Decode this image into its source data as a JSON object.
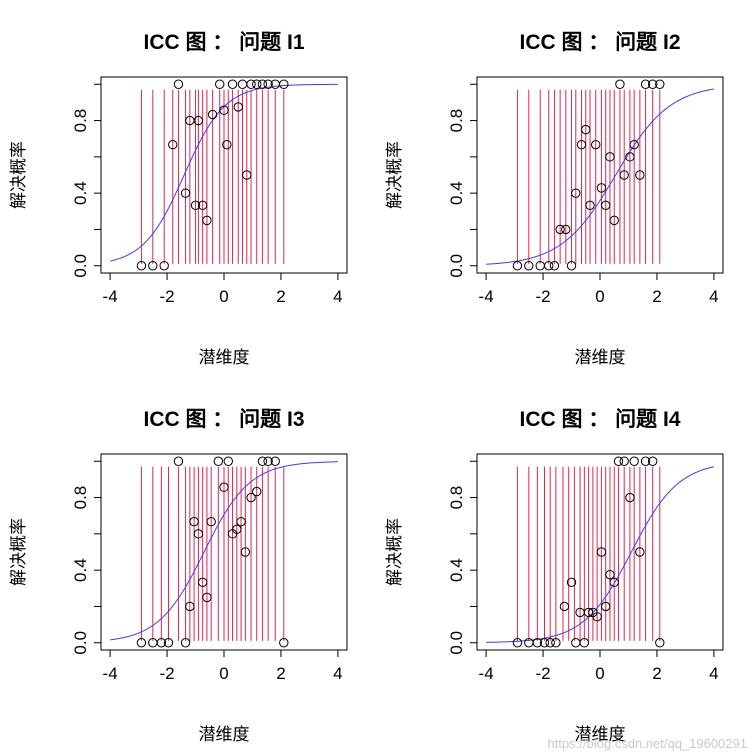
{
  "colors": {
    "curve": "#3b3bff",
    "intervals": "#e0264e",
    "points": "#000000",
    "frame": "#000000"
  },
  "watermark": "https://blog.csdn.net/qq_19600291",
  "chart_data": [
    {
      "type": "scatter",
      "title": "ICC 图 ： 问题  I1",
      "xlabel": "潜维度",
      "ylabel": "解决概率",
      "xlim": [
        -4,
        4
      ],
      "ylim": [
        0,
        1
      ],
      "xticks": [
        "-4",
        "-2",
        "0",
        "2",
        "4"
      ],
      "yticks": [
        "0.0",
        "0.4",
        "0.8"
      ],
      "curve": {
        "a": 1.4,
        "b": -1.4
      },
      "points": {
        "x": [
          -2.9,
          -2.5,
          -2.1,
          -1.8,
          -1.6,
          -1.35,
          -1.2,
          -1.0,
          -0.9,
          -0.75,
          -0.6,
          -0.4,
          -0.15,
          0.0,
          0.1,
          0.3,
          0.5,
          0.65,
          0.8,
          0.95,
          1.15,
          1.35,
          1.55,
          1.8,
          2.1
        ],
        "y": [
          0,
          0,
          0,
          0.667,
          1,
          0.4,
          0.8,
          0.333,
          0.8,
          0.333,
          0.25,
          0.833,
          1,
          0.857,
          0.667,
          1,
          0.875,
          1,
          0.5,
          1,
          1,
          1,
          1,
          1,
          1
        ]
      },
      "intervals": {
        "x": [
          -2.9,
          -2.5,
          -2.1,
          -1.8,
          -1.6,
          -1.35,
          -1.2,
          -1.0,
          -0.9,
          -0.75,
          -0.6,
          -0.4,
          -0.15,
          0.0,
          0.15,
          0.3,
          0.5,
          0.65,
          0.8,
          0.95,
          1.15,
          1.35,
          1.55,
          1.8,
          2.1
        ],
        "low": [
          0.01,
          0.01,
          0.01,
          0.01,
          0.01,
          0.01,
          0.01,
          0.01,
          0.01,
          0.01,
          0.01,
          0.01,
          0.01,
          0.01,
          0.01,
          0.01,
          0.01,
          0.01,
          0.01,
          0.01,
          0.01,
          0.01,
          0.01,
          0.01,
          0.01
        ],
        "high": [
          0.97,
          0.97,
          0.97,
          0.97,
          0.97,
          0.97,
          0.97,
          0.97,
          0.97,
          0.97,
          0.97,
          0.97,
          0.97,
          0.97,
          0.97,
          0.97,
          0.97,
          0.97,
          0.97,
          0.97,
          0.97,
          0.97,
          0.97,
          0.97,
          0.97
        ]
      }
    },
    {
      "type": "scatter",
      "title": "ICC 图 ： 问题  I2",
      "xlabel": "潜维度",
      "ylabel": "解决概率",
      "xlim": [
        -4,
        4
      ],
      "ylim": [
        0,
        1
      ],
      "xticks": [
        "-4",
        "-2",
        "0",
        "2",
        "4"
      ],
      "yticks": [
        "0.0",
        "0.4",
        "0.8"
      ],
      "curve": {
        "a": 1.05,
        "b": 0.55
      },
      "points": {
        "x": [
          -2.9,
          -2.5,
          -2.1,
          -1.8,
          -1.6,
          -1.4,
          -1.2,
          -1.0,
          -0.85,
          -0.65,
          -0.5,
          -0.35,
          -0.15,
          0.05,
          0.2,
          0.35,
          0.5,
          0.7,
          0.85,
          1.05,
          1.2,
          1.4,
          1.6,
          1.85,
          2.1
        ],
        "y": [
          0,
          0,
          0,
          0,
          0,
          0.2,
          0.2,
          0,
          0.4,
          0.667,
          0.75,
          0.333,
          0.667,
          0.429,
          0.333,
          0.6,
          0.25,
          1,
          0.5,
          0.6,
          0.667,
          0.5,
          1,
          1,
          1
        ]
      },
      "intervals": {
        "x": [
          -2.9,
          -2.5,
          -2.1,
          -1.8,
          -1.6,
          -1.4,
          -1.2,
          -1.0,
          -0.85,
          -0.65,
          -0.5,
          -0.35,
          -0.15,
          0.05,
          0.2,
          0.35,
          0.5,
          0.7,
          0.85,
          1.05,
          1.2,
          1.4,
          1.6,
          1.85,
          2.1
        ],
        "low": [
          0.01,
          0.01,
          0.01,
          0.01,
          0.01,
          0.01,
          0.01,
          0.01,
          0.01,
          0.01,
          0.01,
          0.01,
          0.01,
          0.01,
          0.01,
          0.01,
          0.01,
          0.01,
          0.01,
          0.01,
          0.01,
          0.01,
          0.01,
          0.01,
          0.01
        ],
        "high": [
          0.97,
          0.97,
          0.97,
          0.97,
          0.97,
          0.97,
          0.97,
          0.97,
          0.97,
          0.97,
          0.97,
          0.97,
          0.97,
          0.97,
          0.97,
          0.97,
          0.97,
          0.97,
          0.97,
          0.97,
          0.97,
          0.97,
          0.97,
          0.97,
          0.97
        ]
      }
    },
    {
      "type": "scatter",
      "title": "ICC 图 ： 问题  I3",
      "xlabel": "潜维度",
      "ylabel": "解决概率",
      "xlim": [
        -4,
        4
      ],
      "ylim": [
        0,
        1
      ],
      "xticks": [
        "-4",
        "-2",
        "0",
        "2",
        "4"
      ],
      "yticks": [
        "0.0",
        "0.4",
        "0.8"
      ],
      "curve": {
        "a": 1.25,
        "b": -0.7
      },
      "points": {
        "x": [
          -2.9,
          -2.5,
          -2.2,
          -1.95,
          -1.6,
          -1.35,
          -1.2,
          -1.05,
          -0.9,
          -0.75,
          -0.6,
          -0.45,
          -0.2,
          0.0,
          0.15,
          0.3,
          0.45,
          0.6,
          0.75,
          0.95,
          1.15,
          1.35,
          1.55,
          1.8,
          2.1
        ],
        "y": [
          0,
          0,
          0,
          0,
          1,
          0,
          0.2,
          0.667,
          0.6,
          0.333,
          0.25,
          0.667,
          1,
          0.857,
          1,
          0.6,
          0.625,
          0.667,
          0.5,
          0.8,
          0.833,
          1,
          1,
          1,
          0
        ]
      },
      "intervals": {
        "x": [
          -2.9,
          -2.5,
          -2.2,
          -1.95,
          -1.6,
          -1.35,
          -1.2,
          -1.05,
          -0.9,
          -0.75,
          -0.6,
          -0.45,
          -0.2,
          0.0,
          0.15,
          0.3,
          0.45,
          0.6,
          0.75,
          0.95,
          1.15,
          1.35,
          1.55,
          1.8,
          2.1
        ],
        "low": [
          0.01,
          0.01,
          0.01,
          0.01,
          0.01,
          0.01,
          0.01,
          0.01,
          0.01,
          0.01,
          0.01,
          0.01,
          0.01,
          0.01,
          0.01,
          0.01,
          0.01,
          0.01,
          0.01,
          0.01,
          0.01,
          0.01,
          0.01,
          0.01,
          0.01
        ],
        "high": [
          0.97,
          0.97,
          0.97,
          0.97,
          0.97,
          0.97,
          0.97,
          0.97,
          0.97,
          0.97,
          0.97,
          0.97,
          0.97,
          0.97,
          0.97,
          0.97,
          0.97,
          0.97,
          0.97,
          0.97,
          0.97,
          0.97,
          0.97,
          0.97,
          0.97
        ]
      }
    },
    {
      "type": "scatter",
      "title": "ICC 图 ： 问题  I4",
      "xlabel": "潜维度",
      "ylabel": "解决概率",
      "xlim": [
        -4,
        4
      ],
      "ylim": [
        0,
        1
      ],
      "xticks": [
        "-4",
        "-2",
        "0",
        "2",
        "4"
      ],
      "yticks": [
        "0.0",
        "0.4",
        "0.8"
      ],
      "curve": {
        "a": 1.2,
        "b": 1.1
      },
      "points": {
        "x": [
          -2.9,
          -2.5,
          -2.2,
          -1.95,
          -1.75,
          -1.55,
          -1.25,
          -1.0,
          -0.85,
          -0.7,
          -0.55,
          -0.4,
          -0.25,
          -0.1,
          0.05,
          0.2,
          0.35,
          0.5,
          0.65,
          0.85,
          1.05,
          1.2,
          1.4,
          1.6,
          1.85,
          2.1
        ],
        "y": [
          0,
          0,
          0,
          0,
          0,
          0,
          0.2,
          0.333,
          0,
          0.167,
          0,
          0.167,
          0.167,
          0.143,
          0.5,
          0.2,
          0.375,
          0.333,
          1,
          1,
          0.8,
          1,
          0.5,
          1,
          1,
          0
        ]
      },
      "intervals": {
        "x": [
          -2.9,
          -2.5,
          -2.2,
          -1.95,
          -1.75,
          -1.55,
          -1.3,
          -1.1,
          -0.9,
          -0.7,
          -0.55,
          -0.4,
          -0.25,
          -0.1,
          0.05,
          0.2,
          0.35,
          0.5,
          0.65,
          0.85,
          1.05,
          1.2,
          1.4,
          1.6,
          1.85,
          2.1
        ],
        "low": [
          0.01,
          0.01,
          0.01,
          0.01,
          0.01,
          0.01,
          0.01,
          0.01,
          0.01,
          0.01,
          0.01,
          0.01,
          0.01,
          0.01,
          0.01,
          0.01,
          0.01,
          0.01,
          0.01,
          0.01,
          0.01,
          0.01,
          0.01,
          0.01,
          0.01,
          0.01
        ],
        "high": [
          0.97,
          0.97,
          0.97,
          0.97,
          0.97,
          0.97,
          0.97,
          0.97,
          0.97,
          0.97,
          0.97,
          0.97,
          0.97,
          0.97,
          0.97,
          0.97,
          0.97,
          0.97,
          0.97,
          0.97,
          0.97,
          0.97,
          0.97,
          0.97,
          0.97,
          0.97
        ]
      }
    }
  ]
}
